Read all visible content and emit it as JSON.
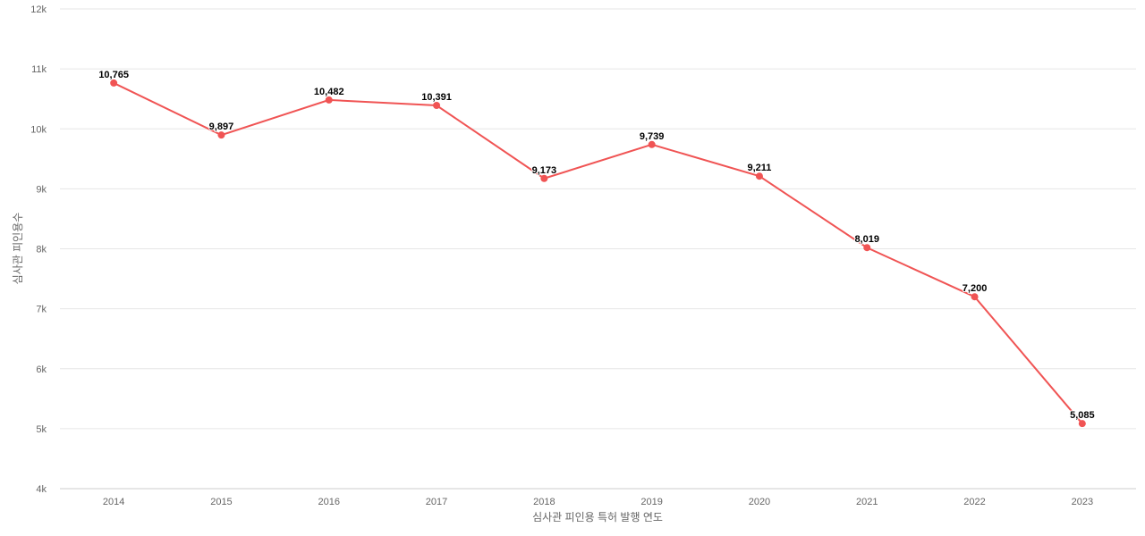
{
  "chart_data": {
    "type": "line",
    "title": "",
    "xlabel": "심사관 피인용 특허 발행 연도",
    "ylabel": "심사관 피인용수",
    "categories": [
      "2014",
      "2015",
      "2016",
      "2017",
      "2018",
      "2019",
      "2020",
      "2021",
      "2022",
      "2023"
    ],
    "series": [
      {
        "name": "심사관 피인용수",
        "color": "#f05454",
        "values": [
          10765,
          9897,
          10482,
          10391,
          9173,
          9739,
          9211,
          8019,
          7200,
          5085
        ],
        "labels": [
          "10,765",
          "9,897",
          "10,482",
          "10,391",
          "9,173",
          "9,739",
          "9,211",
          "8,019",
          "7,200",
          "5,085"
        ]
      }
    ],
    "ylim": [
      4000,
      12000
    ],
    "yticks": [
      4000,
      5000,
      6000,
      7000,
      8000,
      9000,
      10000,
      11000,
      12000
    ],
    "ytick_labels": [
      "4k",
      "5k",
      "6k",
      "7k",
      "8k",
      "9k",
      "10k",
      "11k",
      "12k"
    ],
    "grid": true,
    "legend": "none"
  }
}
